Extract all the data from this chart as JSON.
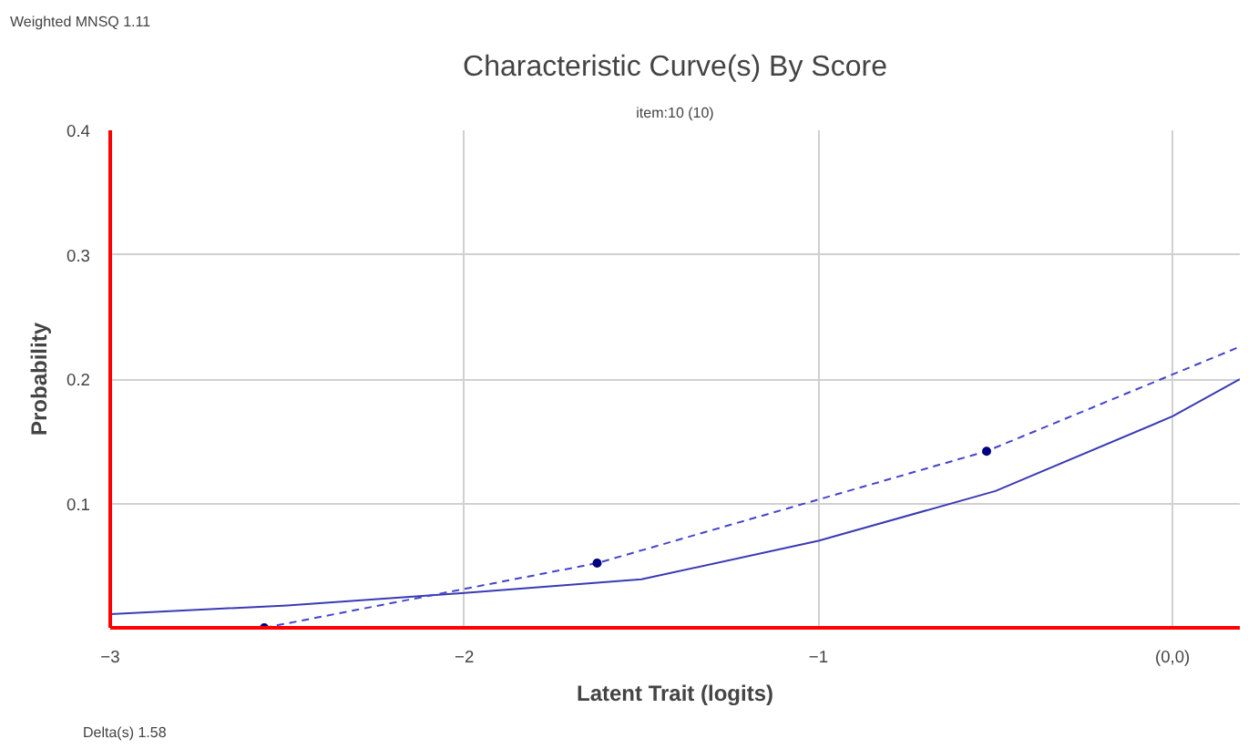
{
  "chart_data": {
    "type": "line",
    "title": "Characteristic Curve(s) By Score",
    "subtitle": "item:10 (10)",
    "xlabel": "Latent Trait (logits)",
    "ylabel": "Probability",
    "annotations": [
      "Weighted MNSQ  1.11",
      "Delta(s)  1.58"
    ],
    "xlim": [
      -3,
      0.19
    ],
    "ylim": [
      0,
      0.4
    ],
    "xticks": [
      -3,
      -2,
      -1,
      {
        "value": 0,
        "label": "(0,0)"
      }
    ],
    "yticks": [
      0.1,
      0.2,
      0.3,
      0.4
    ],
    "grid": true,
    "series": [
      {
        "color": "#3a3ab4",
        "line_style": "solid",
        "marker": "none",
        "x": [
          -3,
          -2.5,
          -2,
          -1.5,
          -1,
          -0.5,
          0,
          0.19
        ],
        "values": [
          0.011,
          0.018,
          0.028,
          0.039,
          0.07,
          0.11,
          0.17,
          0.2
        ]
      },
      {
        "color": "#4444cc",
        "line_style": "dashed",
        "marker": "none",
        "x": [
          -2.565,
          -1.625,
          -0.525,
          0.19
        ],
        "values": [
          0,
          0.052,
          0.142,
          0.226
        ]
      },
      {
        "type": "scatter",
        "color": "#000080",
        "marker": "circle",
        "x": [
          -2.565,
          -1.625,
          -0.525
        ],
        "values": [
          0,
          0.052,
          0.142
        ]
      }
    ]
  }
}
